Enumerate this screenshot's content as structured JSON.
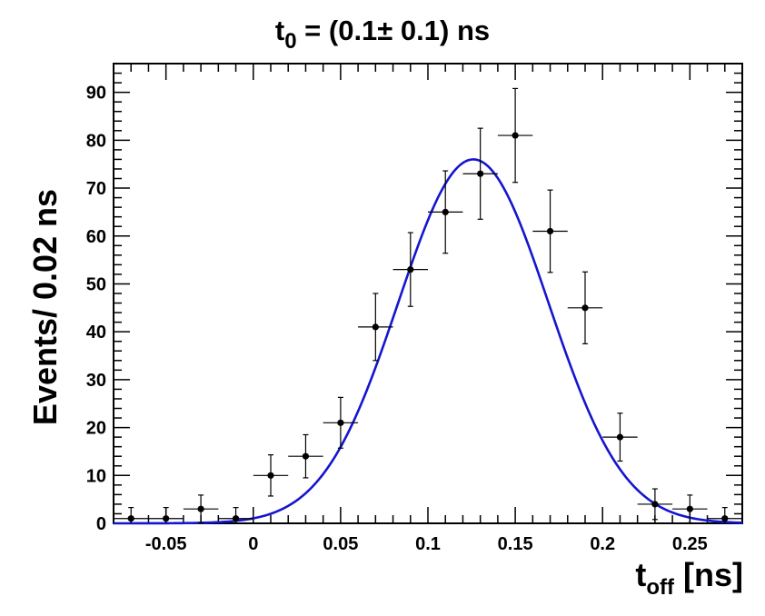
{
  "chart_data": {
    "type": "scatter",
    "title": {
      "main": "t",
      "sub": "0",
      "rest": " = (0.1±  0.1) ns"
    },
    "ylabel": "Events/ 0.02 ns",
    "xlabel": {
      "main": "t",
      "sub": "off",
      "rest": " [ns]"
    },
    "xlim": [
      -0.08,
      0.28
    ],
    "ylim": [
      0,
      96
    ],
    "x_ticks": [
      -0.05,
      0,
      0.05,
      0.1,
      0.15,
      0.2,
      0.25
    ],
    "x_tick_labels": [
      "-0.05",
      "0",
      "0.05",
      "0.1",
      "0.15",
      "0.2",
      "0.25"
    ],
    "y_ticks": [
      0,
      10,
      20,
      30,
      40,
      50,
      60,
      70,
      80,
      90
    ],
    "y_tick_labels": [
      "0",
      "10",
      "20",
      "30",
      "40",
      "50",
      "60",
      "70",
      "80",
      "90"
    ],
    "bin_width": 0.02,
    "points": {
      "x": [
        -0.07,
        -0.05,
        -0.03,
        -0.01,
        0.01,
        0.03,
        0.05,
        0.07,
        0.09,
        0.11,
        0.13,
        0.15,
        0.17,
        0.19,
        0.21,
        0.23,
        0.25,
        0.27
      ],
      "y": [
        1,
        1,
        3,
        1,
        10,
        14,
        21,
        41,
        53,
        65,
        73,
        81,
        61,
        45,
        18,
        4,
        3,
        1
      ],
      "yerr": [
        2.3,
        2.3,
        2.9,
        2.3,
        4.3,
        4.5,
        5.3,
        7.0,
        7.7,
        8.6,
        9.5,
        9.8,
        8.6,
        7.5,
        5.0,
        3.2,
        2.9,
        2.3
      ]
    },
    "fit": {
      "type": "gaussian",
      "amplitude": 76,
      "mean": 0.126,
      "sigma": 0.043,
      "color": "#1515d0"
    },
    "marker_color": "#000000",
    "grid": false
  }
}
